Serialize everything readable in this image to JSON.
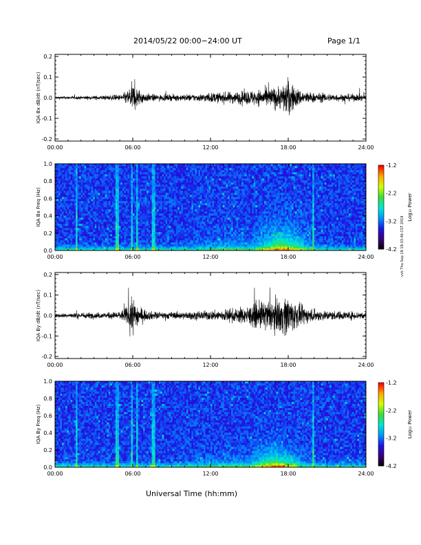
{
  "page": {
    "title": "2014/05/22  00:00−24:00 UT",
    "page_label": "Page 1/1",
    "xaxis_title": "Universal Time (hh:mm)",
    "side_stamp": "vvk Thu Sep 18 19:33:46 CST 2019"
  },
  "colors": {
    "trace": "#000000",
    "colormap": [
      "#000000",
      "#3c0078",
      "#1e14e6",
      "#0096ff",
      "#00e6d2",
      "#3cdc3c",
      "#d2ff00",
      "#ffaa00",
      "#ff0000"
    ]
  },
  "chart_data": [
    {
      "type": "line",
      "ylabel": "IQA Bx dB/dt (nT/sec)",
      "xlim": [
        0,
        24
      ],
      "ylim": [
        -0.21,
        0.21
      ],
      "x_ticks": [
        "00:00",
        "06:00",
        "12:00",
        "18:00",
        "24:00"
      ],
      "y_ticks": [
        "-0.2",
        "-0.1",
        "0.0",
        "0.1",
        "0.2"
      ],
      "envelope": {
        "hours": [
          0,
          1,
          2,
          3,
          4,
          5,
          5.5,
          6,
          6.5,
          7,
          8,
          9,
          10,
          11,
          12,
          13,
          14,
          15,
          16,
          17,
          17.5,
          18,
          18.5,
          19,
          20,
          21,
          22,
          23,
          24
        ],
        "amplitude": [
          0.012,
          0.012,
          0.014,
          0.016,
          0.02,
          0.025,
          0.05,
          0.12,
          0.07,
          0.035,
          0.025,
          0.025,
          0.028,
          0.03,
          0.04,
          0.045,
          0.05,
          0.06,
          0.07,
          0.09,
          0.1,
          0.16,
          0.09,
          0.06,
          0.04,
          0.035,
          0.03,
          0.03,
          0.025
        ]
      }
    },
    {
      "type": "heatmap",
      "ylabel": "IQA Bx Freq (Hz)",
      "colorbar_label": "Log₁₀ Power",
      "xlim": [
        0,
        24
      ],
      "ylim": [
        0,
        1.0
      ],
      "x_ticks": [
        "00:00",
        "06:00",
        "12:00",
        "18:00",
        "24:00"
      ],
      "y_ticks": [
        "0.0",
        "0.2",
        "0.4",
        "0.6",
        "0.8",
        "1.0"
      ],
      "colorbar_range": [
        -4.2,
        -1.2
      ],
      "colorbar_ticks": [
        "-1.2",
        "-2.2",
        "-3.2",
        "-4.2"
      ],
      "features": {
        "enhancement_hours": [
          14.5,
          20.5
        ],
        "enhancement_peak_hour": 17.5,
        "enhancement_top_hz": 0.3,
        "vertical_streak_hours": [
          1.7,
          4.8,
          5.9,
          6.3,
          7.6,
          19.9
        ]
      }
    },
    {
      "type": "line",
      "ylabel": "IQA By dB/dt (nT/sec)",
      "xlim": [
        0,
        24
      ],
      "ylim": [
        -0.21,
        0.21
      ],
      "x_ticks": [
        "00:00",
        "06:00",
        "12:00",
        "18:00",
        "24:00"
      ],
      "y_ticks": [
        "-0.2",
        "-0.1",
        "0.0",
        "0.1",
        "0.2"
      ],
      "envelope": {
        "hours": [
          0,
          1,
          2,
          3,
          4,
          5,
          5.5,
          6,
          6.5,
          7,
          8,
          9,
          10,
          11,
          12,
          13,
          14,
          15,
          16,
          17,
          17.5,
          18,
          18.5,
          19,
          20,
          21,
          22,
          23,
          24
        ],
        "amplitude": [
          0.015,
          0.02,
          0.025,
          0.025,
          0.025,
          0.035,
          0.07,
          0.15,
          0.08,
          0.04,
          0.03,
          0.03,
          0.03,
          0.035,
          0.04,
          0.05,
          0.06,
          0.08,
          0.12,
          0.13,
          0.15,
          0.17,
          0.12,
          0.08,
          0.05,
          0.04,
          0.035,
          0.035,
          0.03
        ]
      }
    },
    {
      "type": "heatmap",
      "ylabel": "IQA By Freq (Hz)",
      "colorbar_label": "Log₁₀ Power",
      "xlim": [
        0,
        24
      ],
      "ylim": [
        0,
        1.0
      ],
      "x_ticks": [
        "00:00",
        "06:00",
        "12:00",
        "18:00",
        "24:00"
      ],
      "y_ticks": [
        "0.0",
        "0.2",
        "0.4",
        "0.6",
        "0.8",
        "1.0"
      ],
      "colorbar_range": [
        -4.2,
        -1.2
      ],
      "colorbar_ticks": [
        "-1.2",
        "-2.2",
        "-3.2",
        "-4.2"
      ],
      "features": {
        "enhancement_hours": [
          14.5,
          20.5
        ],
        "enhancement_peak_hour": 17.0,
        "enhancement_top_hz": 0.25,
        "vertical_streak_hours": [
          1.7,
          4.8,
          5.9,
          6.3,
          7.6,
          19.9
        ]
      }
    }
  ]
}
